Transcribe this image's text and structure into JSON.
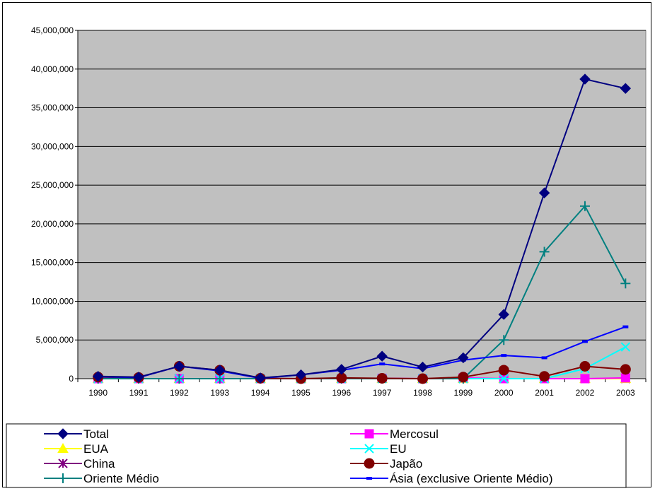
{
  "chart_data": {
    "type": "line",
    "title": "",
    "xlabel": "",
    "ylabel": "",
    "x": [
      "1990",
      "1991",
      "1992",
      "1993",
      "1994",
      "1995",
      "1996",
      "1997",
      "1998",
      "1999",
      "2000",
      "2001",
      "2002",
      "2003"
    ],
    "ylim": [
      0,
      45000000
    ],
    "yticks": [
      "0",
      "5,000,000",
      "10,000,000",
      "15,000,000",
      "20,000,000",
      "25,000,000",
      "30,000,000",
      "35,000,000",
      "40,000,000",
      "45,000,000"
    ],
    "ytick_values": [
      0,
      5000000,
      10000000,
      15000000,
      20000000,
      25000000,
      30000000,
      35000000,
      40000000,
      45000000
    ],
    "grid": true,
    "legend_position": "bottom",
    "plot_background": "#c0c0c0",
    "series": [
      {
        "name": "Total",
        "color": "#000080",
        "marker": "diamond",
        "values": [
          300000,
          200000,
          1600000,
          1100000,
          100000,
          500000,
          1200000,
          2900000,
          1500000,
          2700000,
          8300000,
          24000000,
          38700000,
          37500000
        ]
      },
      {
        "name": "Mercosul",
        "color": "#ff00ff",
        "marker": "square",
        "values": [
          0,
          0,
          0,
          0,
          0,
          0,
          0,
          50000,
          0,
          100000,
          0,
          0,
          0,
          100000
        ]
      },
      {
        "name": "EUA",
        "color": "#ffff00",
        "marker": "triangle",
        "values": [
          0,
          0,
          0,
          0,
          0,
          0,
          0,
          0,
          0,
          0,
          0,
          0,
          0,
          0
        ]
      },
      {
        "name": "EU",
        "color": "#00ffff",
        "marker": "x",
        "values": [
          0,
          0,
          0,
          0,
          0,
          0,
          0,
          0,
          0,
          0,
          0,
          0,
          1300000,
          4100000
        ]
      },
      {
        "name": "China",
        "color": "#800080",
        "marker": "asterisk",
        "values": [
          0,
          0,
          0,
          0,
          0,
          0,
          0,
          0,
          0,
          0,
          0,
          0,
          0,
          0
        ]
      },
      {
        "name": "Japão",
        "color": "#800000",
        "marker": "circle",
        "values": [
          200000,
          150000,
          1600000,
          1100000,
          50000,
          0,
          100000,
          50000,
          0,
          200000,
          1100000,
          300000,
          1600000,
          1200000
        ]
      },
      {
        "name": "Oriente Médio",
        "color": "#008080",
        "marker": "plus",
        "values": [
          0,
          0,
          0,
          0,
          0,
          0,
          0,
          0,
          0,
          0,
          5000000,
          16400000,
          22300000,
          12300000
        ]
      },
      {
        "name": "Ásia (exclusive Oriente Médio)",
        "color": "#0000ff",
        "marker": "dash",
        "values": [
          250000,
          150000,
          1600000,
          1000000,
          50000,
          500000,
          1100000,
          1900000,
          1300000,
          2400000,
          3000000,
          2700000,
          4800000,
          6700000
        ]
      }
    ]
  }
}
